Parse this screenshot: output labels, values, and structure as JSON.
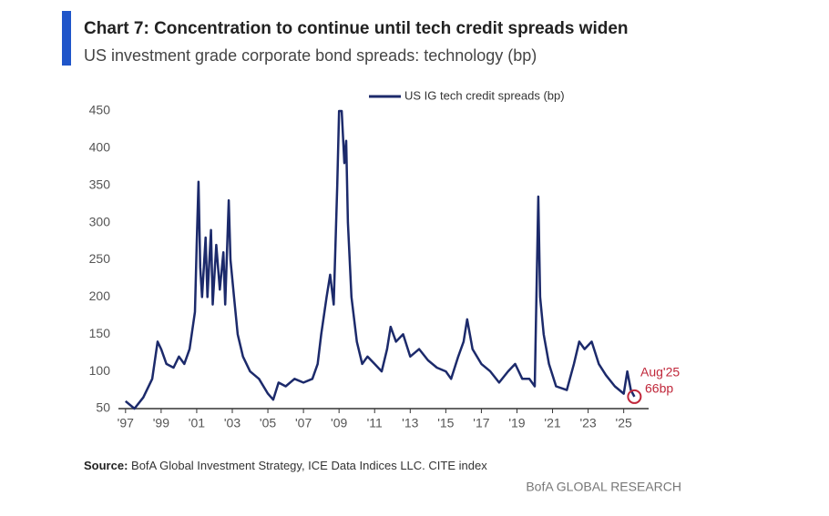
{
  "chart_data": {
    "type": "line",
    "title": "Chart 7: Concentration to continue until tech credit spreads widen",
    "subtitle": "US investment grade corporate bond spreads: technology (bp)",
    "source_label": "Source:",
    "source": "BofA Global Investment Strategy, ICE Data Indices LLC. CITE index",
    "brand": "BofA GLOBAL RESEARCH",
    "x": [
      1997.0,
      1997.5,
      1998.0,
      1998.5,
      1998.8,
      1999.0,
      1999.3,
      1999.7,
      2000.0,
      2000.3,
      2000.6,
      2000.9,
      2001.0,
      2001.1,
      2001.2,
      2001.3,
      2001.5,
      2001.6,
      2001.8,
      2001.9,
      2002.1,
      2002.3,
      2002.5,
      2002.6,
      2002.8,
      2002.9,
      2003.1,
      2003.3,
      2003.6,
      2004.0,
      2004.5,
      2005.0,
      2005.3,
      2005.6,
      2006.0,
      2006.5,
      2007.0,
      2007.5,
      2007.8,
      2008.0,
      2008.3,
      2008.5,
      2008.7,
      2008.9,
      2009.0,
      2009.15,
      2009.3,
      2009.4,
      2009.5,
      2009.7,
      2010.0,
      2010.3,
      2010.6,
      2011.0,
      2011.4,
      2011.7,
      2011.9,
      2012.2,
      2012.6,
      2013.0,
      2013.5,
      2014.0,
      2014.5,
      2015.0,
      2015.3,
      2015.7,
      2016.0,
      2016.2,
      2016.5,
      2017.0,
      2017.5,
      2018.0,
      2018.5,
      2018.9,
      2019.3,
      2019.7,
      2020.0,
      2020.2,
      2020.3,
      2020.5,
      2020.8,
      2021.2,
      2021.8,
      2022.2,
      2022.5,
      2022.8,
      2023.2,
      2023.6,
      2024.0,
      2024.5,
      2025.0,
      2025.2,
      2025.4,
      2025.6
    ],
    "series": [
      {
        "name": "US IG tech credit spreads (bp)",
        "color": "#1c2a6b",
        "values": [
          60,
          50,
          65,
          90,
          140,
          130,
          110,
          105,
          120,
          110,
          130,
          180,
          270,
          355,
          240,
          200,
          280,
          200,
          290,
          190,
          270,
          210,
          260,
          190,
          330,
          250,
          200,
          150,
          120,
          100,
          90,
          70,
          62,
          85,
          80,
          90,
          85,
          90,
          110,
          150,
          200,
          230,
          190,
          350,
          450,
          450,
          380,
          410,
          300,
          200,
          140,
          110,
          120,
          110,
          100,
          130,
          160,
          140,
          150,
          120,
          130,
          115,
          105,
          100,
          90,
          120,
          140,
          170,
          130,
          110,
          100,
          85,
          100,
          110,
          90,
          90,
          80,
          335,
          200,
          150,
          110,
          80,
          75,
          110,
          140,
          130,
          140,
          110,
          95,
          80,
          70,
          100,
          75,
          66
        ]
      }
    ],
    "annotation": {
      "label": "Aug'25",
      "value_label": "66bp",
      "color": "#c0273a"
    },
    "xlim": [
      1996.6,
      2026.4
    ],
    "xticks": [
      {
        "value": 1997,
        "label": "'97"
      },
      {
        "value": 1999,
        "label": "'99"
      },
      {
        "value": 2001,
        "label": "'01"
      },
      {
        "value": 2003,
        "label": "'03"
      },
      {
        "value": 2005,
        "label": "'05"
      },
      {
        "value": 2007,
        "label": "'07"
      },
      {
        "value": 2009,
        "label": "'09"
      },
      {
        "value": 2011,
        "label": "'11"
      },
      {
        "value": 2013,
        "label": "'13"
      },
      {
        "value": 2015,
        "label": "'15"
      },
      {
        "value": 2017,
        "label": "'17"
      },
      {
        "value": 2019,
        "label": "'19"
      },
      {
        "value": 2021,
        "label": "'21"
      },
      {
        "value": 2023,
        "label": "'23"
      },
      {
        "value": 2025,
        "label": "'25"
      }
    ],
    "ylim": [
      50,
      450
    ],
    "yticks": [
      50,
      100,
      150,
      200,
      250,
      300,
      350,
      400,
      450
    ],
    "grid": false,
    "legend": "top"
  }
}
